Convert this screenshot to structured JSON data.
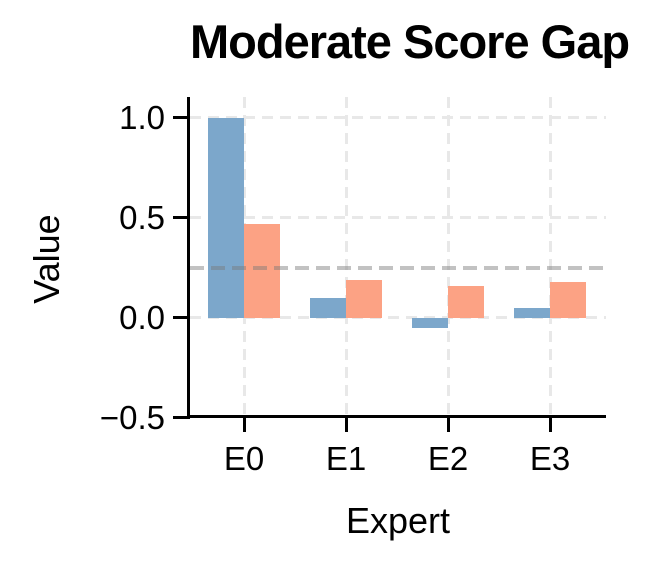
{
  "chart_data": {
    "type": "bar",
    "title": "Moderate Score Gap",
    "xlabel": "Expert",
    "ylabel": "Value",
    "categories": [
      "E0",
      "E1",
      "E2",
      "E3"
    ],
    "series": [
      {
        "name": "blue",
        "color": "#7CA7CB",
        "values": [
          1.0,
          0.1,
          -0.05,
          0.05
        ]
      },
      {
        "name": "orange",
        "color": "#FCA284",
        "values": [
          0.47,
          0.19,
          0.16,
          0.18
        ]
      }
    ],
    "yticks": [
      1.0,
      0.5,
      0.0,
      -0.5
    ],
    "ytick_labels": [
      "1.0",
      "0.5",
      "0.0",
      "−0.5"
    ],
    "ylim": [
      -0.5,
      1.1
    ],
    "reference_line": {
      "value": 0.25,
      "color": "#787878",
      "opacity": 0.45,
      "style": "dashed"
    },
    "grid": {
      "show": true,
      "color": "#E8E8E8",
      "style": "dashed"
    },
    "background": "#FFFFFF",
    "text_color": "#000000"
  }
}
